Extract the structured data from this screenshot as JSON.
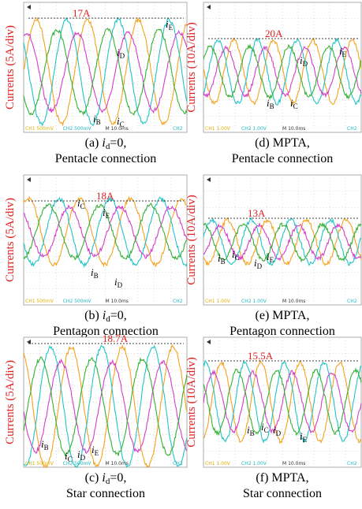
{
  "panels": [
    {
      "ylabel": "Currents (5A/div)",
      "peak": "17A",
      "currents": [
        {
          "main": "i",
          "sub": "E"
        },
        {
          "main": "i",
          "sub": "D"
        },
        {
          "main": "i",
          "sub": "B"
        },
        {
          "main": "i",
          "sub": "C"
        }
      ],
      "status": {
        "ch1": "CH1  500mV",
        "ch2": "CH2  500mV",
        "time": "M 10.0ms",
        "trig": "CH2"
      },
      "caption": {
        "tag": "(a)",
        "expr": [
          "i",
          "d",
          "=0,"
        ],
        "line2": "Pentacle connection"
      }
    },
    {
      "ylabel": "Currents (5A/div)",
      "peak": "18A",
      "currents": [
        {
          "main": "i",
          "sub": "C"
        },
        {
          "main": "i",
          "sub": "E"
        },
        {
          "main": "i",
          "sub": "B"
        },
        {
          "main": "i",
          "sub": "D"
        }
      ],
      "status": {
        "ch1": "CH1  500mV",
        "ch2": "CH2  500mV",
        "time": "M 10.0ms",
        "trig": "CH2"
      },
      "caption": {
        "tag": "(b)",
        "expr": [
          "i",
          "d",
          "=0,"
        ],
        "line2": "Pentagon connection"
      }
    },
    {
      "ylabel": "Currents (5A/div)",
      "peak": "18.7A",
      "currents": [
        {
          "main": "i",
          "sub": "B"
        },
        {
          "main": "i",
          "sub": "C"
        },
        {
          "main": "i",
          "sub": "D"
        },
        {
          "main": "i",
          "sub": "E"
        }
      ],
      "status": {
        "ch1": "CH1  500mV",
        "ch2": "CH2  500mV",
        "time": "M 10.0ms",
        "trig": "CH2"
      },
      "caption": {
        "tag": "(c)",
        "expr": [
          "i",
          "d",
          "=0,"
        ],
        "line2": "Star connection"
      }
    },
    {
      "ylabel": "Currents (10A/div)",
      "peak": "20A",
      "currents": [
        {
          "main": "i",
          "sub": "E"
        },
        {
          "main": "i",
          "sub": "D"
        },
        {
          "main": "i",
          "sub": "B"
        },
        {
          "main": "i",
          "sub": "C"
        }
      ],
      "status": {
        "ch1": "CH1  1.00V",
        "ch2": "CH2  1.00V",
        "time": "M 10.0ms",
        "trig": "CH2"
      },
      "caption": {
        "tag": "(d)",
        "text": "MPTA,",
        "line2": "Pentacle connection"
      }
    },
    {
      "ylabel": "Currents (10A/div)",
      "peak": "13A",
      "currents": [
        {
          "main": "i",
          "sub": "B"
        },
        {
          "main": "i",
          "sub": "C"
        },
        {
          "main": "i",
          "sub": "D"
        },
        {
          "main": "i",
          "sub": "E"
        }
      ],
      "status": {
        "ch1": "CH1  1.00V",
        "ch2": "CH2  1.00V",
        "time": "M 10.0ms",
        "trig": "CH2"
      },
      "caption": {
        "tag": "(e)",
        "text": "MPTA,",
        "line2": "Pentagon connection"
      }
    },
    {
      "ylabel": "Currents (10A/div)",
      "peak": "15.5A",
      "currents": [
        {
          "main": "i",
          "sub": "B"
        },
        {
          "main": "i",
          "sub": "C"
        },
        {
          "main": "i",
          "sub": "D"
        },
        {
          "main": "i",
          "sub": "E"
        }
      ],
      "status": {
        "ch1": "CH1  1.00V",
        "ch2": "CH2  1.00V",
        "time": "M 10.0ms",
        "trig": "CH2"
      },
      "caption": {
        "tag": "(f)",
        "text": "MPTA,",
        "line2": "Star connection"
      }
    }
  ]
}
